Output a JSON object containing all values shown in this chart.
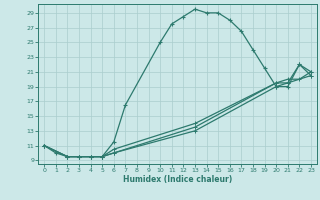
{
  "xlabel": "Humidex (Indice chaleur)",
  "bg_color": "#cce8e8",
  "line_color": "#2d7a6e",
  "grid_color": "#aacece",
  "xlim": [
    -0.5,
    23.5
  ],
  "ylim": [
    8.5,
    30.2
  ],
  "xticks": [
    0,
    1,
    2,
    3,
    4,
    5,
    6,
    7,
    8,
    9,
    10,
    11,
    12,
    13,
    14,
    15,
    16,
    17,
    18,
    19,
    20,
    21,
    22,
    23
  ],
  "yticks": [
    9,
    11,
    13,
    15,
    17,
    19,
    21,
    23,
    25,
    27,
    29
  ],
  "main_x": [
    0,
    1,
    2,
    3,
    4,
    5,
    6,
    7,
    10,
    11,
    12,
    13,
    14,
    15,
    16,
    17,
    18,
    19,
    20,
    21,
    22,
    23
  ],
  "main_y": [
    11,
    10,
    9.5,
    9.5,
    9.5,
    9.5,
    11.5,
    16.5,
    25,
    27.5,
    28.5,
    29.5,
    29,
    29,
    28,
    26.5,
    24,
    21.5,
    19,
    19,
    22,
    21
  ],
  "diag1_x": [
    0,
    2,
    3,
    4,
    5,
    6,
    13,
    20,
    21,
    23
  ],
  "diag1_y": [
    11,
    9.5,
    9.5,
    9.5,
    9.5,
    10,
    13,
    19,
    19.5,
    20.5
  ],
  "diag2_x": [
    0,
    2,
    3,
    4,
    5,
    6,
    13,
    20,
    21,
    22,
    23
  ],
  "diag2_y": [
    11,
    9.5,
    9.5,
    9.5,
    9.5,
    10,
    13.5,
    19.5,
    20,
    20,
    21
  ],
  "diag3_x": [
    0,
    2,
    3,
    4,
    5,
    6,
    13,
    20,
    21,
    22,
    23
  ],
  "diag3_y": [
    11,
    9.5,
    9.5,
    9.5,
    9.5,
    10.5,
    14,
    19.5,
    19.5,
    22,
    20.5
  ]
}
